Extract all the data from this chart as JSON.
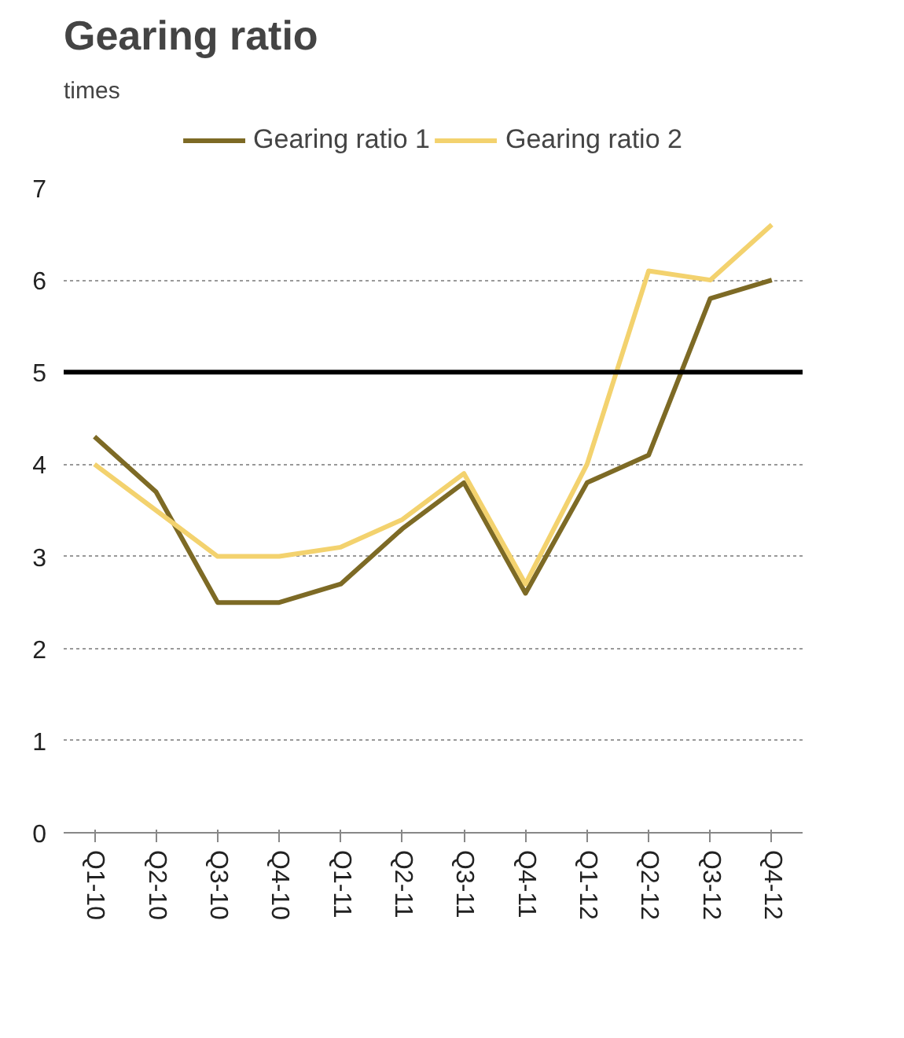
{
  "chart_data": {
    "type": "line",
    "title": "Gearing ratio",
    "subtitle": "times",
    "categories": [
      "Q1-10",
      "Q2-10",
      "Q3-10",
      "Q4-10",
      "Q1-11",
      "Q2-11",
      "Q3-11",
      "Q4-11",
      "Q1-12",
      "Q2-12",
      "Q3-12",
      "Q4-12"
    ],
    "series": [
      {
        "name": "Gearing ratio 1",
        "color": "#7d6a25",
        "values": [
          4.3,
          3.7,
          2.5,
          2.5,
          2.7,
          3.3,
          3.8,
          2.6,
          3.8,
          4.1,
          5.8,
          6.0
        ]
      },
      {
        "name": "Gearing ratio 2",
        "color": "#f3d26e",
        "values": [
          4.0,
          3.5,
          3.0,
          3.0,
          3.1,
          3.4,
          3.9,
          2.7,
          4.0,
          6.1,
          6.0,
          6.6
        ]
      }
    ],
    "ylim": [
      0,
      7
    ],
    "yticks": [
      0,
      1,
      2,
      3,
      4,
      5,
      6,
      7
    ],
    "grid": "y",
    "legend": "top",
    "marker": "none",
    "line_style": "solid",
    "ref_lines": [
      {
        "axis": "y",
        "value": 5,
        "color": "#000000"
      }
    ]
  }
}
